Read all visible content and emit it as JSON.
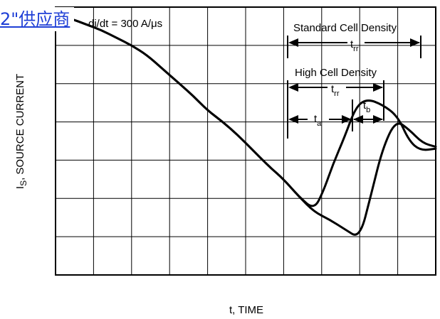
{
  "overlay": {
    "link_text": "2\"供应商"
  },
  "chart_data": {
    "type": "line",
    "annotation_di_dt": "di/dt = 300 A/μs",
    "ylabel_main": "I",
    "ylabel_sub": "S",
    "ylabel_rest": ", SOURCE CURRENT",
    "xlabel": "t, TIME",
    "grid": true,
    "gridlines": {
      "vertical": 10,
      "horizontal": 7
    },
    "series": [
      {
        "name": "Standard Cell Density",
        "points": [
          [
            0,
            0.2
          ],
          [
            0.4,
            0.3
          ],
          [
            0.8,
            0.45
          ],
          [
            1.2,
            0.6
          ],
          [
            1.6,
            0.8
          ],
          [
            2.0,
            1.0
          ],
          [
            2.4,
            1.25
          ],
          [
            2.8,
            1.6
          ],
          [
            3.2,
            1.95
          ],
          [
            3.6,
            2.3
          ],
          [
            4.0,
            2.7
          ],
          [
            4.4,
            3.0
          ],
          [
            4.8,
            3.35
          ],
          [
            5.2,
            3.75
          ],
          [
            5.6,
            4.15
          ],
          [
            6.0,
            4.5
          ],
          [
            6.4,
            4.95
          ],
          [
            6.8,
            5.35
          ],
          [
            7.2,
            5.55
          ],
          [
            7.6,
            5.8
          ],
          [
            8.0,
            6.05
          ],
          [
            8.3,
            4.9
          ],
          [
            8.6,
            3.7
          ],
          [
            8.95,
            2.95
          ],
          [
            9.3,
            3.2
          ],
          [
            9.65,
            3.55
          ],
          [
            10.0,
            3.65
          ]
        ]
      },
      {
        "name": "High Cell Density",
        "points": [
          [
            0,
            0.2
          ],
          [
            0.4,
            0.3
          ],
          [
            0.8,
            0.45
          ],
          [
            1.2,
            0.6
          ],
          [
            1.6,
            0.8
          ],
          [
            2.0,
            1.0
          ],
          [
            2.4,
            1.25
          ],
          [
            2.8,
            1.6
          ],
          [
            3.2,
            1.95
          ],
          [
            3.6,
            2.3
          ],
          [
            4.0,
            2.7
          ],
          [
            4.4,
            3.0
          ],
          [
            4.8,
            3.35
          ],
          [
            5.2,
            3.75
          ],
          [
            5.6,
            4.15
          ],
          [
            6.0,
            4.5
          ],
          [
            6.4,
            4.95
          ],
          [
            6.8,
            5.3
          ],
          [
            7.05,
            4.8
          ],
          [
            7.3,
            4.1
          ],
          [
            7.6,
            3.4
          ],
          [
            7.9,
            2.6
          ],
          [
            8.2,
            2.4
          ],
          [
            8.6,
            2.55
          ],
          [
            9.0,
            2.85
          ],
          [
            9.3,
            3.5
          ],
          [
            9.6,
            3.75
          ],
          [
            10.0,
            3.7
          ]
        ]
      }
    ],
    "annotations": {
      "standard_label": "Standard Cell Density",
      "high_label": "High Cell Density",
      "trr_main": "t",
      "trr_sub": "rr",
      "ta_main": "t",
      "ta_sub": "a",
      "tb_main": "t",
      "tb_sub": "b"
    }
  }
}
